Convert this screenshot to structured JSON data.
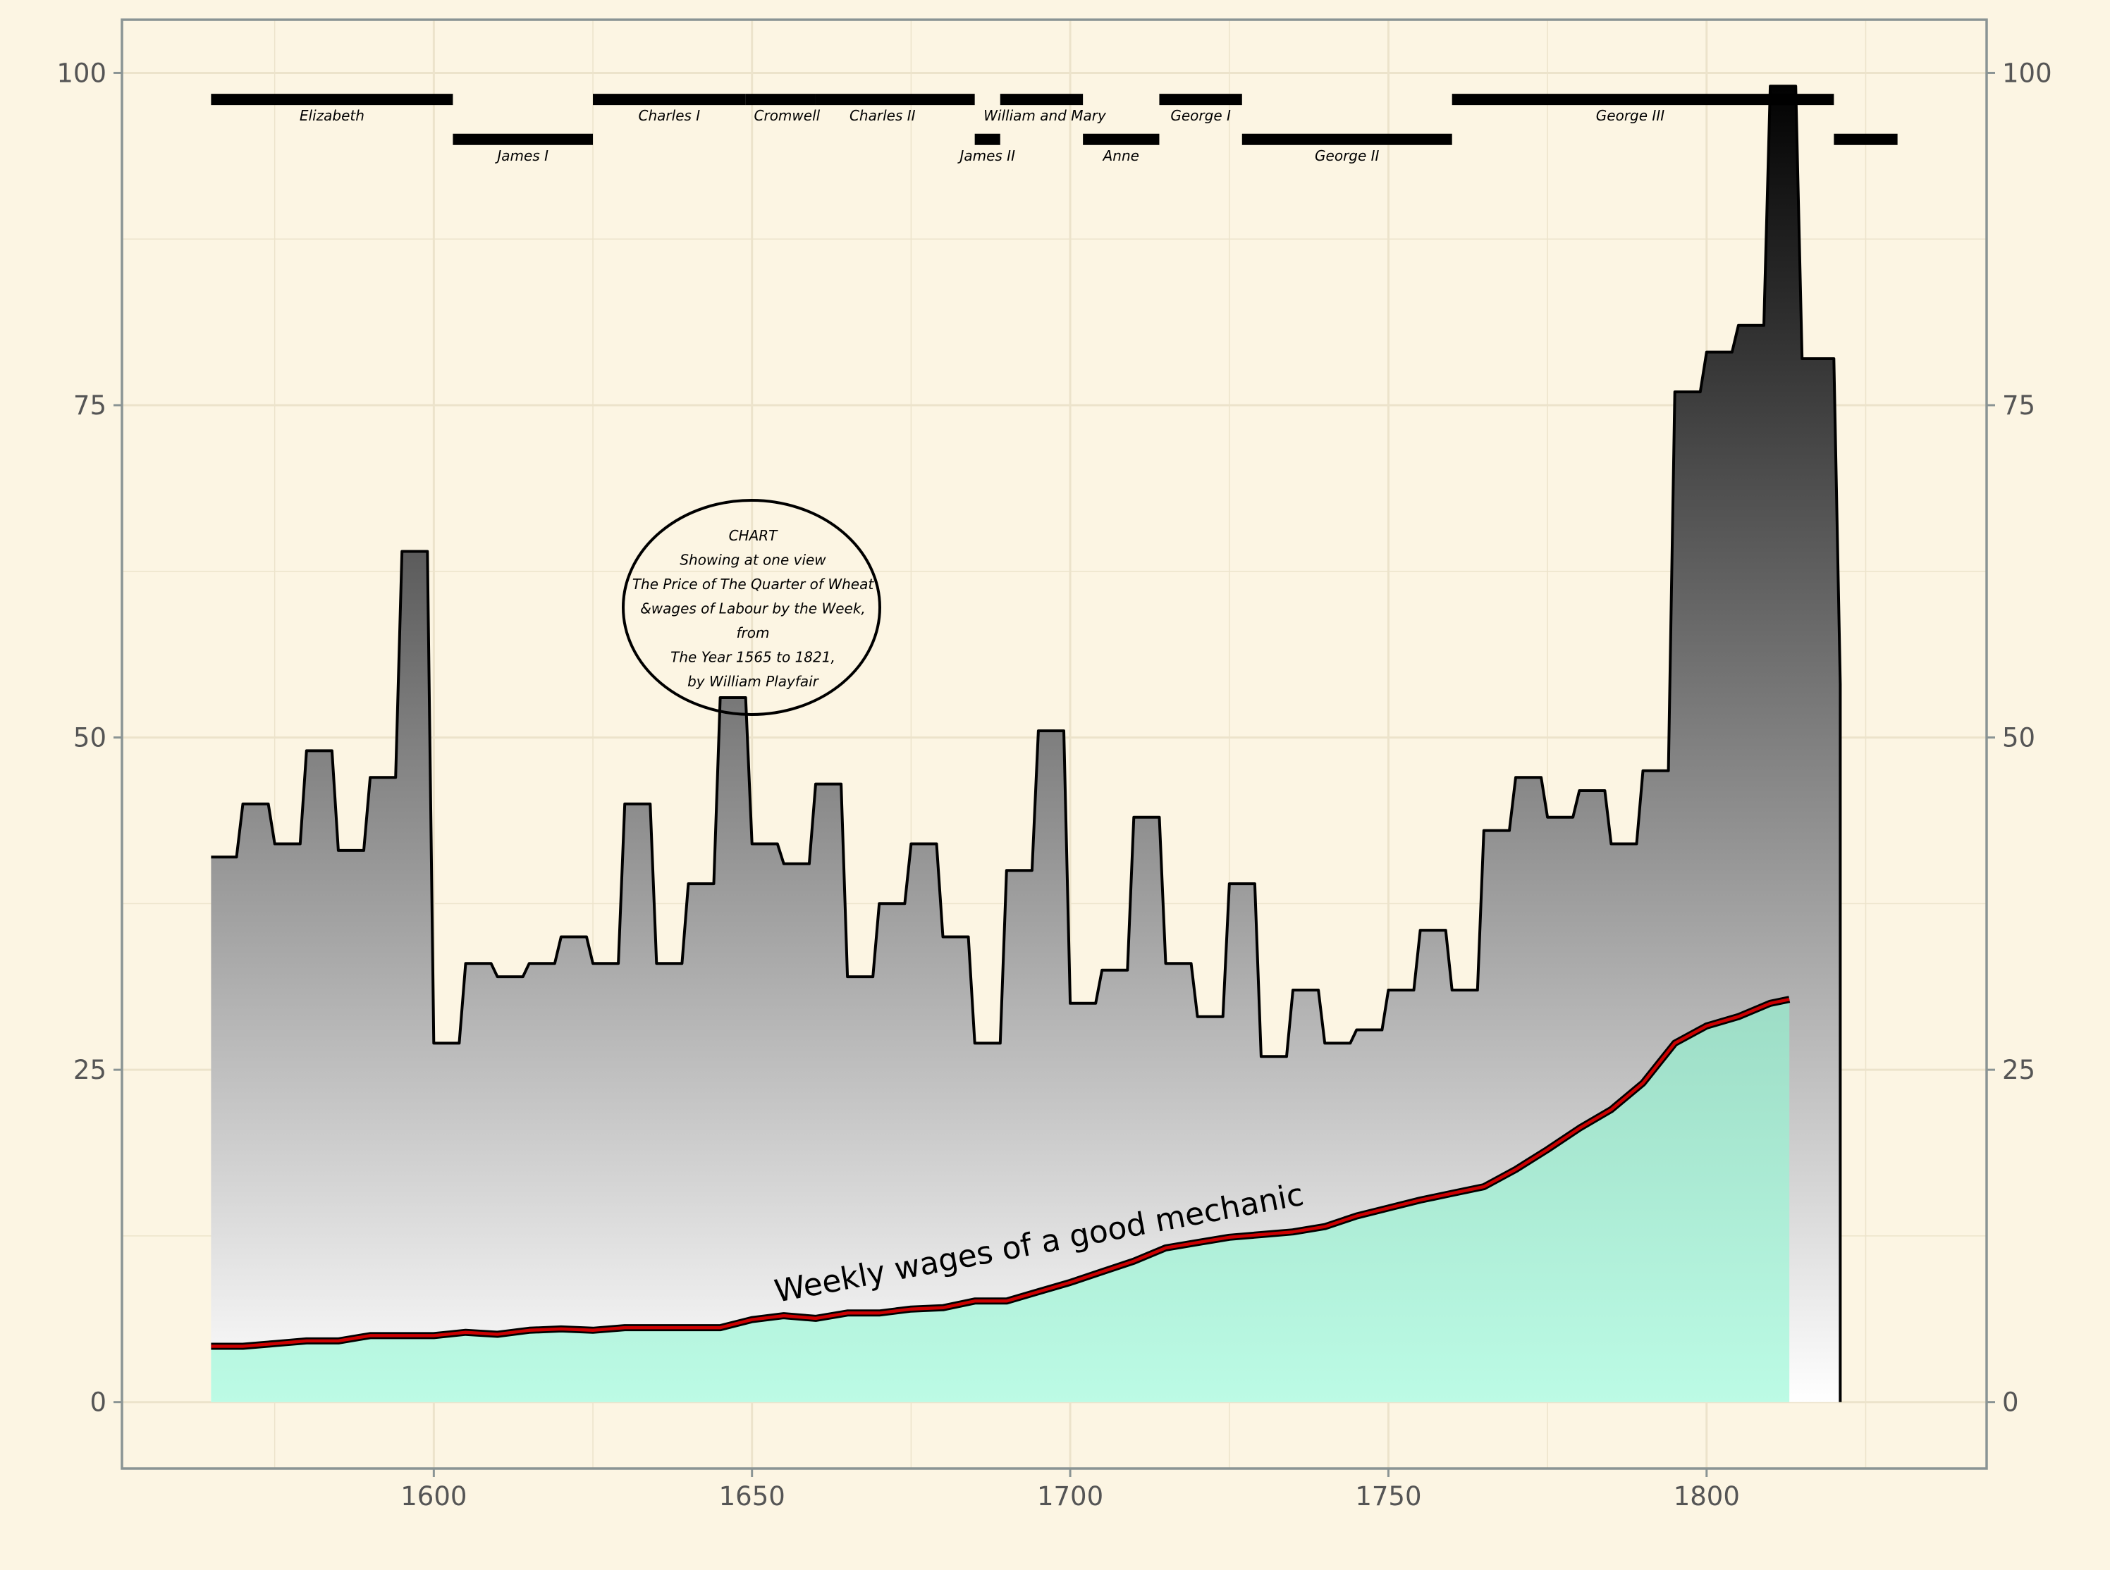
{
  "chart_data": {
    "type": "area",
    "title_lines": [
      "CHART",
      "Showing at one view",
      "The Price of The Quarter of Wheat",
      "&wages of Labour by the Week,",
      "from",
      "The Year 1565 to 1821,",
      "by William Playfair"
    ],
    "xlabel": "",
    "ylabel": "",
    "xlim": [
      1551,
      1844
    ],
    "ylim": [
      -5,
      104
    ],
    "x_ticks": [
      1600,
      1650,
      1700,
      1750,
      1800
    ],
    "y_ticks": [
      0,
      25,
      50,
      75,
      100
    ],
    "grid": true,
    "series": [
      {
        "kind": "wheat-price",
        "x": [
          1565,
          1570,
          1575,
          1580,
          1585,
          1590,
          1595,
          1600,
          1605,
          1610,
          1615,
          1620,
          1625,
          1630,
          1635,
          1640,
          1645,
          1650,
          1655,
          1660,
          1665,
          1670,
          1675,
          1680,
          1685,
          1690,
          1695,
          1700,
          1705,
          1710,
          1715,
          1720,
          1725,
          1730,
          1735,
          1740,
          1745,
          1750,
          1755,
          1760,
          1765,
          1770,
          1775,
          1780,
          1785,
          1790,
          1795,
          1800,
          1805,
          1810,
          1815,
          1821
        ],
        "values": [
          41,
          45,
          42,
          49,
          41.5,
          47,
          64,
          27,
          33,
          32,
          33,
          35,
          33,
          45,
          33,
          39,
          53,
          42,
          40.5,
          46.5,
          32,
          37.5,
          42,
          35,
          27,
          40,
          50.5,
          30,
          32.5,
          44,
          33,
          29,
          39,
          26,
          31,
          27,
          28,
          31,
          35.5,
          31,
          43,
          47,
          44,
          46,
          42,
          47.5,
          76,
          79,
          81,
          99,
          78.5,
          54
        ]
      },
      {
        "kind": "wages",
        "label": "Weekly wages of a good mechanic",
        "x": [
          1565,
          1570,
          1575,
          1580,
          1585,
          1590,
          1595,
          1600,
          1605,
          1610,
          1615,
          1620,
          1625,
          1630,
          1635,
          1640,
          1645,
          1650,
          1655,
          1660,
          1665,
          1670,
          1675,
          1680,
          1685,
          1690,
          1695,
          1700,
          1705,
          1710,
          1715,
          1720,
          1725,
          1730,
          1735,
          1740,
          1745,
          1750,
          1755,
          1760,
          1765,
          1770,
          1775,
          1780,
          1785,
          1790,
          1795,
          1800,
          1805,
          1810,
          1813
        ],
        "values": [
          4.2,
          4.2,
          4.4,
          4.6,
          4.6,
          5,
          5,
          5,
          5.25,
          5.1,
          5.4,
          5.5,
          5.4,
          5.6,
          5.6,
          5.6,
          5.6,
          6.2,
          6.5,
          6.3,
          6.7,
          6.7,
          7,
          7.1,
          7.6,
          7.6,
          8.3,
          9,
          9.8,
          10.6,
          11.6,
          12,
          12.4,
          12.6,
          12.8,
          13.2,
          14,
          14.6,
          15.2,
          15.7,
          16.2,
          17.5,
          19,
          20.6,
          22,
          24,
          27,
          28.3,
          29,
          30,
          30.3
        ]
      }
    ],
    "monarchs": [
      {
        "name": "Elizabeth",
        "start": 1565,
        "end": 1603,
        "row": 1
      },
      {
        "name": "James I",
        "start": 1603,
        "end": 1625,
        "row": 2
      },
      {
        "name": "Charles I",
        "start": 1625,
        "end": 1649,
        "row": 1
      },
      {
        "name": "Cromwell",
        "start": 1649,
        "end": 1660,
        "row": 1
      },
      {
        "name": "Charles II",
        "start": 1660,
        "end": 1685,
        "row": 1
      },
      {
        "name": "James II",
        "start": 1685,
        "end": 1689,
        "row": 2
      },
      {
        "name": "William and Mary",
        "start": 1689,
        "end": 1702,
        "row": 1
      },
      {
        "name": "Anne",
        "start": 1702,
        "end": 1714,
        "row": 2
      },
      {
        "name": "George I",
        "start": 1714,
        "end": 1727,
        "row": 1
      },
      {
        "name": "George II",
        "start": 1727,
        "end": 1760,
        "row": 2
      },
      {
        "name": "George III",
        "start": 1760,
        "end": 1820,
        "row": 1
      },
      {
        "name": "",
        "start": 1820,
        "end": 1830,
        "row": 2
      }
    ],
    "colors": {
      "background": "#fcf5e3",
      "wheat_top": "#000000",
      "wheat_bottom": "#ffffff",
      "wages_fill": "#b3f5dd",
      "wages_line": "#cc0000",
      "grid": "#ece3cb",
      "axis": "#8a9494"
    }
  }
}
